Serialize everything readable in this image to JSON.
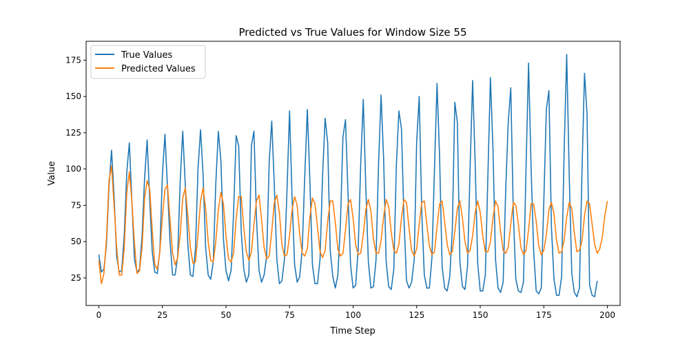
{
  "chart_data": {
    "type": "line",
    "title": "Predicted vs True Values for Window Size 55",
    "xlabel": "Time Step",
    "ylabel": "Value",
    "xlim": [
      -5,
      205
    ],
    "ylim": [
      6,
      188
    ],
    "xticks": [
      0,
      25,
      50,
      75,
      100,
      125,
      150,
      175,
      200
    ],
    "yticks": [
      25,
      50,
      75,
      100,
      125,
      150,
      175
    ],
    "grid": false,
    "legend_position": "top-left",
    "series": [
      {
        "name": "True Values",
        "color": "#1f77b4",
        "values": [
          41,
          29,
          31,
          48,
          88,
          113,
          81,
          40,
          29,
          30,
          55,
          98,
          118,
          78,
          38,
          29,
          31,
          54,
          94,
          120,
          79,
          43,
          29,
          28,
          44,
          96,
          124,
          87,
          50,
          27,
          27,
          40,
          92,
          126,
          89,
          48,
          27,
          26,
          45,
          100,
          127,
          96,
          46,
          27,
          24,
          36,
          90,
          126,
          106,
          52,
          30,
          23,
          30,
          70,
          123,
          116,
          57,
          31,
          22,
          27,
          116,
          126,
          66,
          30,
          22,
          27,
          40,
          105,
          133,
          89,
          38,
          21,
          23,
          38,
          85,
          140,
          80,
          34,
          22,
          26,
          45,
          96,
          141,
          92,
          34,
          21,
          21,
          38,
          96,
          135,
          118,
          44,
          26,
          18,
          27,
          62,
          122,
          134,
          83,
          34,
          18,
          20,
          45,
          104,
          148,
          87,
          36,
          18,
          19,
          37,
          103,
          151,
          107,
          36,
          19,
          17,
          31,
          102,
          140,
          128,
          66,
          23,
          18,
          22,
          37,
          119,
          150,
          70,
          27,
          18,
          18,
          39,
          100,
          159,
          109,
          33,
          18,
          16,
          26,
          57,
          146,
          132,
          36,
          19,
          17,
          33,
          100,
          161,
          104,
          35,
          16,
          16,
          27,
          95,
          163,
          114,
          38,
          18,
          15,
          22,
          85,
          132,
          156,
          70,
          24,
          16,
          15,
          22,
          100,
          173,
          101,
          44,
          16,
          14,
          18,
          78,
          141,
          154,
          60,
          24,
          13,
          13,
          26,
          113,
          179,
          95,
          28,
          15,
          12,
          18,
          97,
          166,
          138,
          20,
          13,
          12,
          23
        ]
      },
      {
        "name": "Predicted Values",
        "color": "#ff7f0e",
        "values": [
          37,
          21,
          28,
          52,
          92,
          102,
          75,
          46,
          27,
          27,
          46,
          84,
          98,
          78,
          49,
          28,
          30,
          46,
          80,
          92,
          86,
          58,
          34,
          31,
          43,
          67,
          86,
          89,
          65,
          42,
          34,
          39,
          55,
          80,
          87,
          68,
          46,
          35,
          36,
          55,
          78,
          87,
          73,
          50,
          37,
          36,
          50,
          72,
          84,
          76,
          54,
          38,
          36,
          42,
          66,
          81,
          81,
          60,
          43,
          37,
          43,
          62,
          78,
          82,
          65,
          46,
          38,
          40,
          57,
          77,
          82,
          70,
          48,
          40,
          41,
          54,
          72,
          81,
          75,
          55,
          42,
          40,
          45,
          67,
          80,
          76,
          60,
          43,
          39,
          44,
          64,
          78,
          78,
          63,
          45,
          40,
          42,
          58,
          76,
          79,
          66,
          48,
          41,
          42,
          55,
          72,
          79,
          71,
          52,
          42,
          42,
          51,
          67,
          79,
          74,
          56,
          44,
          42,
          48,
          66,
          79,
          77,
          59,
          44,
          40,
          45,
          62,
          77,
          78,
          62,
          47,
          41,
          43,
          60,
          76,
          78,
          64,
          48,
          41,
          43,
          57,
          73,
          78,
          66,
          50,
          42,
          44,
          54,
          70,
          78,
          70,
          54,
          43,
          43,
          50,
          66,
          78,
          74,
          57,
          44,
          42,
          46,
          62,
          77,
          75,
          62,
          46,
          41,
          44,
          58,
          76,
          76,
          64,
          47,
          41,
          44,
          55,
          72,
          77,
          69,
          51,
          42,
          43,
          51,
          67,
          77,
          73,
          56,
          43,
          44,
          50,
          68,
          78,
          76,
          62,
          48,
          42,
          45,
          53,
          68,
          78
        ]
      }
    ]
  }
}
